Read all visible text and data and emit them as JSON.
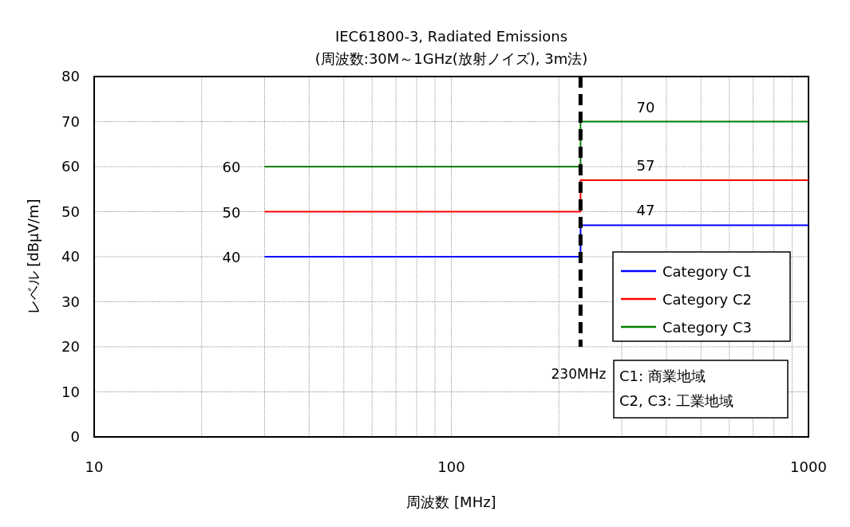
{
  "chart_data": {
    "type": "line",
    "title": "IEC61800-3, Radiated Emissions",
    "subtitle": "(周波数:30M～1GHz(放射ノイズ), 3m法)",
    "xlabel": "周波数 [MHz]",
    "ylabel": "レベル [dBμV/m]",
    "log": "x",
    "xlim": [
      10,
      1000
    ],
    "ylim": [
      0,
      80
    ],
    "xticks": [
      10,
      {
        "value": 20,
        "label": null
      },
      {
        "value": 30,
        "label": null
      },
      {
        "value": 40,
        "label": null
      },
      {
        "value": 50,
        "label": null
      },
      {
        "value": 60,
        "label": null
      },
      {
        "value": 70,
        "label": null
      },
      {
        "value": 80,
        "label": null
      },
      {
        "value": 90,
        "label": null
      },
      100,
      {
        "value": 200,
        "label": null
      },
      {
        "value": 300,
        "label": null
      },
      {
        "value": 400,
        "label": null
      },
      {
        "value": 500,
        "label": null
      },
      {
        "value": 600,
        "label": null
      },
      {
        "value": 700,
        "label": null
      },
      {
        "value": 800,
        "label": null
      },
      {
        "value": 900,
        "label": null
      },
      1000
    ],
    "yticks": [
      0,
      10,
      20,
      30,
      40,
      50,
      60,
      70,
      80
    ],
    "grid": true,
    "legend": "bottom right",
    "line_style": "solid",
    "marker": "none",
    "series": [
      {
        "name": "Category C1",
        "color": "#0000ff",
        "x": [
          30,
          230,
          230,
          350,
          1000
        ],
        "values": [
          40,
          40,
          47,
          47,
          47
        ],
        "value_labels": [
          "40",
          null,
          null,
          "47",
          null
        ]
      },
      {
        "name": "Category C2",
        "color": "#ff0000",
        "x": [
          30,
          230,
          230,
          350,
          1000
        ],
        "values": [
          50,
          50,
          57,
          57,
          57
        ],
        "value_labels": [
          "50",
          null,
          null,
          "57",
          null
        ]
      },
      {
        "name": "Category C3",
        "color": "#008000",
        "x": [
          30,
          230,
          230,
          350,
          1000
        ],
        "values": [
          60,
          60,
          70,
          70,
          70
        ],
        "value_labels": [
          "60",
          null,
          null,
          "70",
          null
        ]
      }
    ],
    "ref_lines": [
      {
        "axis": "x",
        "value": 230,
        "label": "230MHz",
        "color": "#000000",
        "line_style": "dashed"
      }
    ],
    "annotations": [
      "C1: 商業地域",
      "C2, C3: 工業地域"
    ]
  }
}
